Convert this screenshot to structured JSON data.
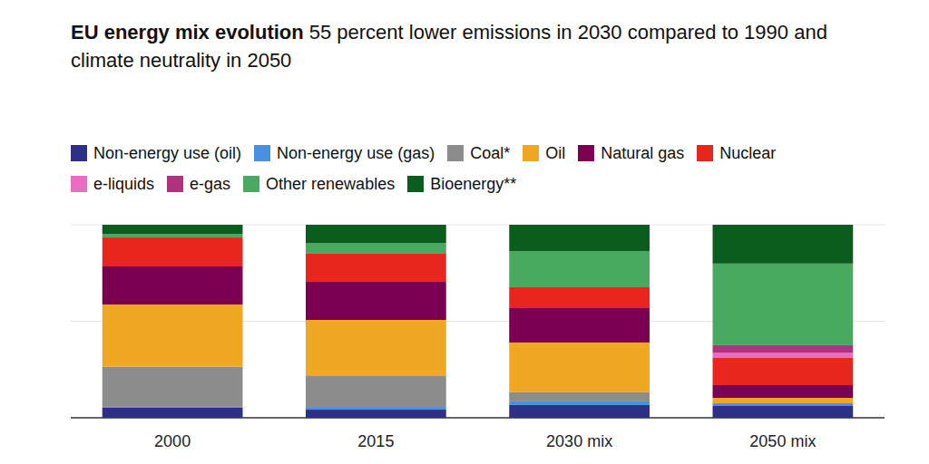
{
  "chart_data": {
    "type": "bar",
    "stacked": true,
    "title": "EU energy mix evolution",
    "subtitle": "55 percent lower emissions in 2030 compared to 1990 and climate neutrality in 2050",
    "categories": [
      "2000",
      "2015",
      "2030 mix",
      "2050 mix"
    ],
    "ylim": [
      0,
      100
    ],
    "yticks": [
      0,
      50,
      100
    ],
    "grid": true,
    "tick_labels": "x",
    "legend": "top",
    "series": [
      {
        "name": "Non-energy use (oil)",
        "color": "#2e2f86",
        "values": [
          5.2,
          4.2,
          6.6,
          6.1
        ]
      },
      {
        "name": "Non-energy use (gas)",
        "color": "#4a90e2",
        "values": [
          0.5,
          1.4,
          1.9,
          1.4
        ]
      },
      {
        "name": "Coal*",
        "color": "#8c8c8c",
        "values": [
          20.7,
          16.0,
          4.7,
          0
        ]
      },
      {
        "name": "Oil",
        "color": "#f0a823",
        "values": [
          32.3,
          29.1,
          25.8,
          2.8
        ]
      },
      {
        "name": "Natural gas",
        "color": "#7b0051",
        "values": [
          19.7,
          19.7,
          17.8,
          6.6
        ]
      },
      {
        "name": "Nuclear",
        "color": "#e8261e",
        "values": [
          15.0,
          14.6,
          10.8,
          14.1
        ]
      },
      {
        "name": "e-liquids",
        "color": "#e96cc0",
        "values": [
          0,
          0,
          0,
          2.8
        ]
      },
      {
        "name": "e-gas",
        "color": "#b0327f",
        "values": [
          0,
          0,
          0,
          3.8
        ]
      },
      {
        "name": "Other renewables",
        "color": "#49a960",
        "values": [
          1.9,
          5.6,
          18.8,
          42.3
        ]
      },
      {
        "name": "Bioenergy**",
        "color": "#0b5d1e",
        "values": [
          4.7,
          9.4,
          13.6,
          20.1
        ]
      }
    ]
  }
}
